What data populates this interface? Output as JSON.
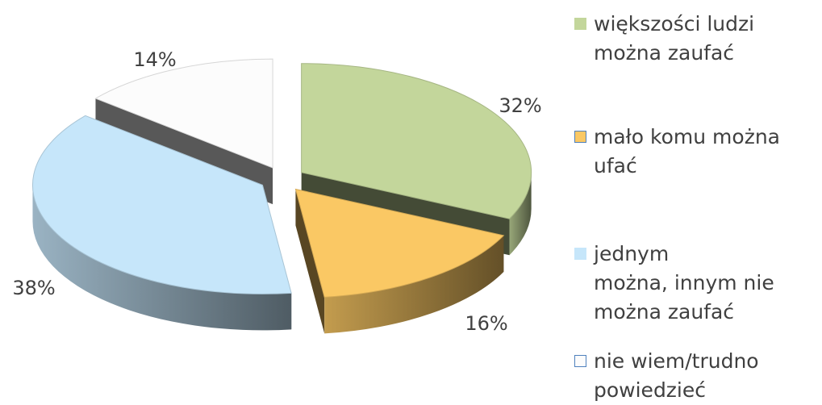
{
  "chart_data": {
    "type": "pie",
    "categories": [
      "większości ludzi\nmożna zaufać",
      "mało komu można\nufać",
      "jednym\nmożna, innym nie\nmożna zaufać",
      "nie wiem/trudno\npowiedzieć"
    ],
    "values": [
      32,
      16,
      38,
      14
    ],
    "value_labels": [
      "32%",
      "16%",
      "38%",
      "14%"
    ],
    "colors": [
      "#c3d69b",
      "#fac864",
      "#c6e6fa",
      "#fcfcfc"
    ],
    "start_angle": 0,
    "exploded": true,
    "legend": "right"
  }
}
